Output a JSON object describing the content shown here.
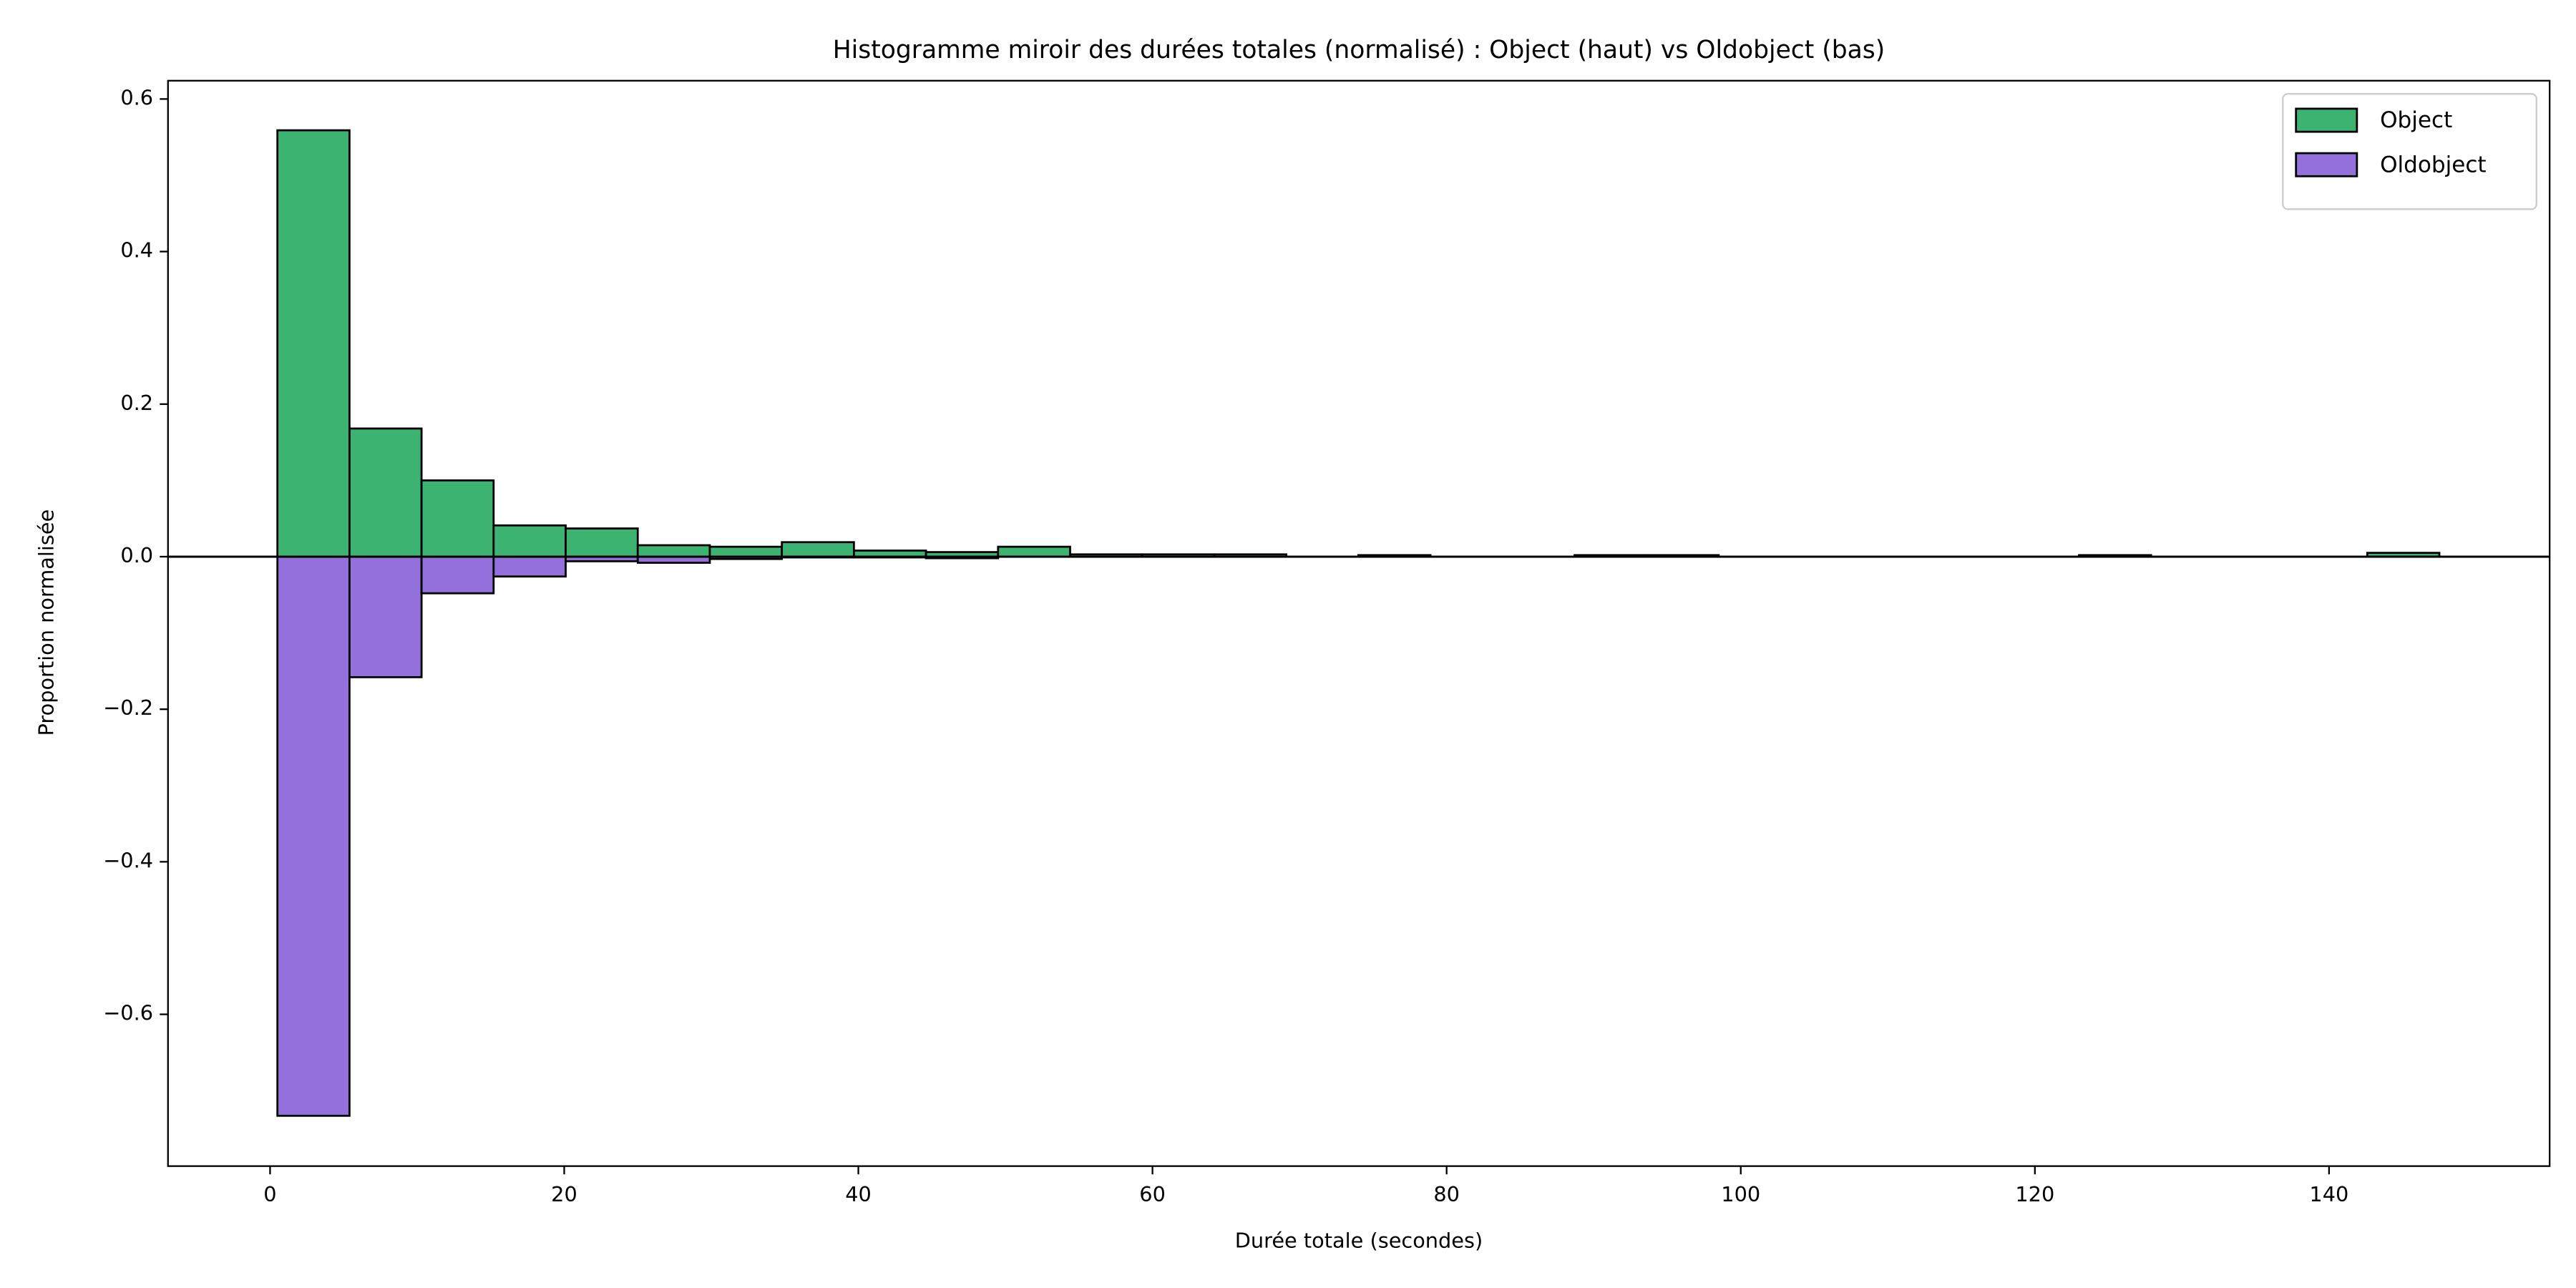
{
  "chart_data": {
    "type": "mirror_histogram",
    "title": "Histogramme miroir des durées totales (normalisé) : Object (haut) vs Oldobject (bas)",
    "x_label": "Durée totale (secondes)",
    "y_label": "Proportion normalisée",
    "bins": [
      0.5,
      5.4,
      10.3,
      15.2,
      20.1,
      25,
      29.9,
      34.8,
      39.7,
      44.6,
      49.5,
      54.4,
      59.3,
      64.2,
      69.1,
      74,
      78.9,
      83.8,
      88.7,
      93.6,
      98.5,
      103.4,
      108.3,
      113.2,
      118.1,
      123,
      127.9,
      132.8,
      137.7,
      142.6,
      147.5
    ],
    "series": [
      {
        "name": "Object",
        "color": "#3cb371",
        "values": [
          0.559,
          0.168,
          0.1,
          0.041,
          0.037,
          0.015,
          0.013,
          0.019,
          0.008,
          0.006,
          0.013,
          0.003,
          0.003,
          0.003,
          0,
          0.002,
          0,
          0,
          0.002,
          0.002,
          0,
          0,
          0,
          0,
          0,
          0.002,
          0,
          0,
          0,
          0.005
        ]
      },
      {
        "name": "Oldobject",
        "color": "#9370db",
        "values": [
          -0.733,
          -0.158,
          -0.048,
          -0.026,
          -0.006,
          -0.008,
          -0.003,
          -0.001,
          -0.001,
          -0.002,
          0,
          0,
          0,
          0,
          0,
          0,
          0,
          0,
          0,
          0,
          0,
          0,
          0,
          0,
          0,
          0,
          0,
          0,
          0,
          0
        ]
      }
    ],
    "edge_color": "#000000",
    "xlim": [
      -6.94,
      155.0
    ],
    "ylim": [
      -0.799,
      0.624
    ],
    "xticks": [
      0,
      20,
      40,
      60,
      80,
      100,
      120,
      140
    ],
    "yticks": [
      {
        "value": -0.6,
        "label": "−0.6"
      },
      {
        "value": -0.4,
        "label": "−0.4"
      },
      {
        "value": -0.2,
        "label": "−0.2"
      },
      {
        "value": 0,
        "label": "0.0"
      },
      0.2,
      0.4,
      0.6
    ],
    "legend": "upper right",
    "grid": false
  }
}
